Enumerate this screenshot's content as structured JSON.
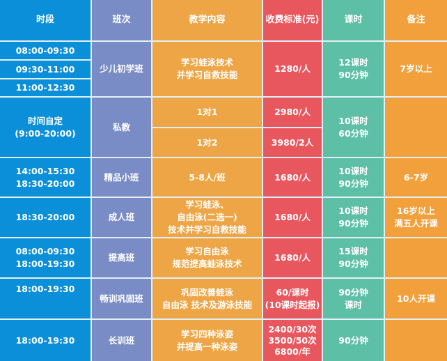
{
  "colors": {
    "time": "#0b8fd8",
    "class": "#7a8cc6",
    "content": "#eda545",
    "fee": "#e8575d",
    "hours": "#5dbfa6",
    "note": "#f2a03b"
  },
  "headers": [
    "时段",
    "班次",
    "教学内容",
    "收费标准(元)",
    "课时",
    "备注"
  ],
  "rows": [
    {
      "times": [
        "08:00-09:30",
        "09:30-11:00",
        "11:00-12:30"
      ],
      "class": "少儿初学班",
      "content": "学习蛙泳技术\n并学习自救技能",
      "fee": "1280/人",
      "hours": "12课时\n90分钟",
      "note": "7岁以上"
    },
    {
      "time": "时间自定\n(9:00-20:00)",
      "class": "私教",
      "contents": [
        "1对1",
        "1对2"
      ],
      "fees": [
        "2980/人",
        "3980/2人"
      ],
      "hours": "10课时\n60分钟",
      "note": ""
    },
    {
      "time": "14:00-15:30\n18:30-20:00",
      "class": "精品小班",
      "content": "5-8人/班",
      "fee": "1680/人",
      "hours": "10课时\n90分钟",
      "note": "6-7岁"
    },
    {
      "time": "18:30-20:00",
      "class": "成人班",
      "content": "学习蛙泳、\n自由泳(二选一)\n技术并学习自救技能",
      "fee": "1680/人",
      "hours": "10课时\n90分钟",
      "note": "16岁以上\n满五人开课"
    },
    {
      "time": "08:00-09:30\n18:00-19:30",
      "class": "提高班",
      "content": "学习自由泳\n规范提高蛙泳技术",
      "fee": "1680/人",
      "hours": "15课时\n90分钟",
      "note": ""
    },
    {
      "time": "18:00-19:30",
      "class": "畅训巩固班",
      "content": "巩固改善蛙泳\n自由泳 技术及游泳技能",
      "fee": "60/课时\n(10课时起报)",
      "hours": "90分钟\n课时",
      "note": "10人开课"
    },
    {
      "time": "18:00-19:30",
      "class": "长训班",
      "content": "学习四种泳姿\n并提高一种泳姿",
      "fee": "2400/30次\n3500/50次\n6800/年",
      "hours": "90分钟",
      "note": ""
    }
  ]
}
